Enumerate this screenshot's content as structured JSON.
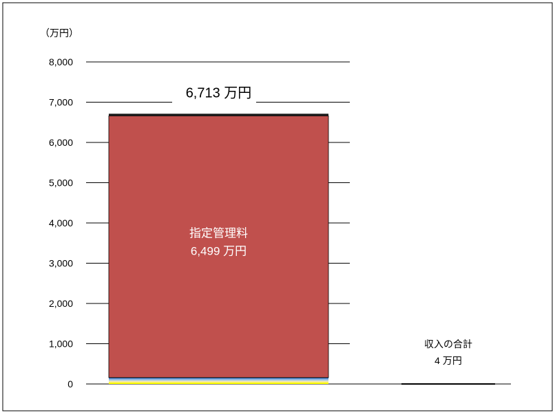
{
  "chart_data": {
    "type": "bar",
    "unit_label": "（万円）",
    "ylim": [
      0,
      8000
    ],
    "yticks": [
      {
        "value": 0,
        "label": "0"
      },
      {
        "value": 1000,
        "label": "1,000"
      },
      {
        "value": 2000,
        "label": "2,000"
      },
      {
        "value": 3000,
        "label": "3,000"
      },
      {
        "value": 4000,
        "label": "4,000"
      },
      {
        "value": 5000,
        "label": "5,000"
      },
      {
        "value": 6000,
        "label": "6,000"
      },
      {
        "value": 7000,
        "label": "7,000"
      },
      {
        "value": 8000,
        "label": "8,000"
      }
    ],
    "grid": true,
    "stacked": true,
    "columns": [
      {
        "total_label": "6,713 万円",
        "segments": [
          {
            "value": 40,
            "color": "#ffff00"
          },
          {
            "value": 40,
            "color": "#f5e6a8"
          },
          {
            "value": 40,
            "color": "#9fc5e8"
          },
          {
            "value": 40,
            "color": "#4f81bd"
          },
          {
            "value": 6499,
            "color": "#c0504d",
            "label": "指定管理料",
            "value_label": "6,499 万円"
          },
          {
            "value": 54,
            "color": "#1a1a1a"
          }
        ]
      },
      {
        "label": "収入の合計",
        "value_label": "4 万円",
        "segments": [
          {
            "value": 4,
            "color": "#000000"
          }
        ]
      }
    ]
  }
}
